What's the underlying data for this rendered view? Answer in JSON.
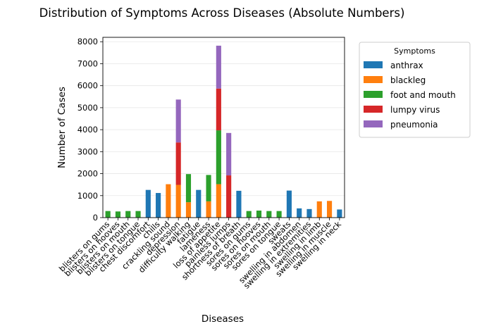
{
  "chart_data": {
    "type": "bar",
    "stacked": true,
    "title": "Distribution of Symptoms Across Diseases (Absolute Numbers)",
    "xlabel": "Diseases",
    "ylabel": "Number of Cases",
    "ylim": [
      0,
      8200
    ],
    "yticks": [
      0,
      1000,
      2000,
      3000,
      4000,
      5000,
      6000,
      7000,
      8000
    ],
    "grid": true,
    "legend_title": "Symptoms",
    "legend_position": "outside-right",
    "categories": [
      "blisters on gums",
      "blisters on hooves",
      "blisters on mouth",
      "blisters on tongue",
      "chest discomfort",
      "chills",
      "crackling sound",
      "depression",
      "difficulty walking",
      "fatigue",
      "lameness",
      "loss of appetite",
      "painless lumps",
      "shortness of breath",
      "sores on gums",
      "sores on hooves",
      "sores on mouth",
      "sores on tongue",
      "sweats",
      "swelling in abdomen",
      "swelling in extremities",
      "swelling in limb",
      "swelling in muscle",
      "swelling in neck"
    ],
    "series": [
      {
        "name": "anthrax",
        "color": "#1f77b4",
        "values": [
          0,
          0,
          0,
          0,
          1260,
          1120,
          0,
          0,
          0,
          1260,
          0,
          0,
          0,
          1220,
          0,
          0,
          0,
          0,
          1230,
          420,
          390,
          0,
          0,
          370
        ]
      },
      {
        "name": "blackleg",
        "color": "#ff7f0e",
        "values": [
          0,
          0,
          0,
          0,
          0,
          0,
          1520,
          1490,
          700,
          0,
          740,
          1520,
          0,
          0,
          0,
          0,
          0,
          0,
          0,
          0,
          0,
          740,
          760,
          0
        ]
      },
      {
        "name": "foot and mouth",
        "color": "#2ca02c",
        "values": [
          300,
          280,
          300,
          300,
          0,
          0,
          0,
          0,
          1280,
          0,
          1200,
          2450,
          0,
          0,
          300,
          320,
          300,
          300,
          0,
          0,
          0,
          0,
          0,
          0
        ]
      },
      {
        "name": "lumpy virus",
        "color": "#d62728",
        "values": [
          0,
          0,
          0,
          0,
          0,
          0,
          0,
          1930,
          0,
          0,
          0,
          1900,
          1920,
          0,
          0,
          0,
          0,
          0,
          0,
          0,
          0,
          0,
          0,
          0
        ]
      },
      {
        "name": "pneumonia",
        "color": "#9467bd",
        "values": [
          0,
          0,
          0,
          0,
          0,
          0,
          0,
          1950,
          0,
          0,
          0,
          1950,
          1930,
          0,
          0,
          0,
          0,
          0,
          0,
          0,
          0,
          0,
          0,
          0
        ]
      }
    ]
  }
}
